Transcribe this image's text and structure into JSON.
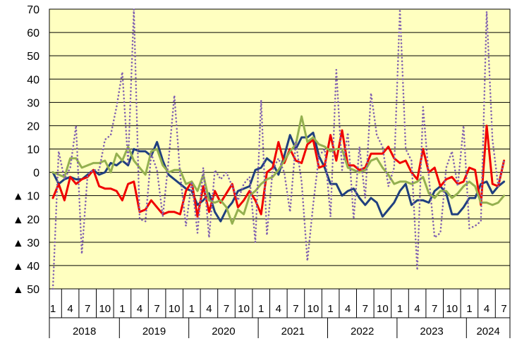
{
  "chart_data": {
    "type": "line",
    "title": "",
    "xlabel": "",
    "ylabel": "",
    "ylim": [
      -50,
      70
    ],
    "y_ticks": [
      70,
      60,
      50,
      40,
      30,
      20,
      10,
      0,
      -10,
      -20,
      -30,
      -40,
      -50
    ],
    "y_tick_labels": [
      "70",
      "60",
      "50",
      "40",
      "30",
      "20",
      "10",
      "0",
      "▲ 10",
      "▲ 20",
      "▲ 30",
      "▲ 40",
      "▲ 50"
    ],
    "grid": true,
    "legend": "none",
    "plot_background": "#ffffc0",
    "start": "2018-01",
    "month_tick_labels": [
      "1",
      "4",
      "7",
      "10",
      "1",
      "4",
      "7",
      "10",
      "1",
      "4",
      "7",
      "10",
      "1",
      "4",
      "7",
      "10",
      "1",
      "4",
      "7",
      "10",
      "1",
      "4",
      "7",
      "10",
      "1",
      "4",
      "7"
    ],
    "year_labels": [
      "2018",
      "2019",
      "2020",
      "2021",
      "2022",
      "2023",
      "2024"
    ],
    "series": [
      {
        "color": "#1f3f7f",
        "style": "solid",
        "values": [
          0,
          -5,
          -3,
          -2,
          -3,
          -3,
          -1,
          1,
          -1,
          0,
          4,
          3,
          5,
          3,
          10,
          9,
          9,
          7,
          13,
          5,
          -1,
          -3,
          -5,
          -7,
          -8,
          -14,
          -12,
          -9,
          -17,
          -21,
          -16,
          -13,
          -8,
          -7,
          -6,
          1,
          2,
          6,
          4,
          -1,
          7,
          16,
          10,
          15,
          15,
          17,
          7,
          2,
          -5,
          -5,
          -10,
          -8,
          -7,
          -11,
          -14,
          -11,
          -13,
          -19,
          -16,
          -13,
          -8,
          -5,
          -14,
          -12,
          -12,
          -13,
          -8,
          -6,
          -9,
          -18,
          -18,
          -15,
          -11,
          -11,
          -5,
          -4,
          -9,
          -6,
          -4
        ],
        "x_start": 0
      },
      {
        "color": "#f00000",
        "style": "solid",
        "values": [
          -11,
          -5,
          -12,
          -2,
          -5,
          -3,
          -2,
          1,
          -6,
          -7,
          -7,
          -8,
          -12,
          -5,
          -4,
          -17,
          -16,
          -12,
          -15,
          -18,
          -17,
          -17,
          -18,
          -8,
          -4,
          -19,
          -6,
          -17,
          -8,
          -13,
          -9,
          -5,
          -15,
          -12,
          -8,
          -12,
          -18,
          0,
          2,
          13,
          4,
          10,
          5,
          4,
          12,
          14,
          2,
          3,
          16,
          5,
          18,
          3,
          3,
          1,
          2,
          8,
          8,
          8,
          11,
          6,
          4,
          5,
          0,
          -3,
          10,
          0,
          2,
          -6,
          -3,
          -2,
          -5,
          -4,
          2,
          1,
          -14,
          20,
          -5,
          -6,
          5
        ],
        "x_start": 0
      },
      {
        "color": "#94b050",
        "style": "solid",
        "values": [
          0,
          -1,
          -2,
          6,
          6,
          2,
          3,
          4,
          4,
          5,
          0,
          8,
          5,
          11,
          5,
          2,
          -1,
          9,
          10,
          3,
          0,
          1,
          1,
          -5,
          -4,
          -8,
          -1,
          -12,
          -13,
          -12,
          -15,
          -22,
          -16,
          -18,
          -10,
          -8,
          -5,
          -3,
          -2,
          1,
          5,
          9,
          12,
          24,
          13,
          15,
          12,
          11,
          9,
          10,
          10,
          2,
          1,
          0,
          1,
          5,
          6,
          2,
          -1,
          -5,
          -4,
          -4,
          -5,
          -4,
          -2,
          -9,
          -11,
          -8,
          -8,
          -11,
          -9,
          -6,
          -4,
          -6,
          -13,
          -13,
          -14,
          -13,
          -10
        ],
        "x_start": 0
      },
      {
        "color": "#8060b0",
        "style": "dotted",
        "values": [
          -50,
          9,
          -3,
          2,
          20,
          -35,
          -1,
          1,
          1,
          14,
          16,
          28,
          43,
          4,
          70,
          -20,
          -21,
          8,
          1,
          -19,
          5,
          33,
          -1,
          -23,
          -4,
          -26,
          2,
          -28,
          1,
          -3,
          0,
          -6,
          -12,
          -5,
          -2,
          -30,
          31,
          -27,
          1,
          6,
          0,
          -17,
          13,
          -4,
          -38,
          -14,
          7,
          10,
          -19,
          44,
          1,
          17,
          -20,
          11,
          -11,
          34,
          16,
          11,
          -6,
          2,
          70,
          10,
          5,
          -42,
          28,
          -2,
          -28,
          -26,
          2,
          9,
          -6,
          20,
          -24,
          -23,
          -21,
          69,
          14,
          -6,
          5
        ],
        "x_start": 0
      }
    ]
  }
}
